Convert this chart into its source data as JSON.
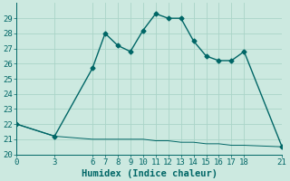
{
  "x_upper": [
    0,
    3,
    6,
    7,
    8,
    9,
    10,
    11,
    12,
    13,
    14,
    15,
    16,
    17,
    18,
    21
  ],
  "y_upper": [
    22,
    21.2,
    25.7,
    28.0,
    27.2,
    26.8,
    28.2,
    29.3,
    29.0,
    29.0,
    27.5,
    26.5,
    26.2,
    26.2,
    26.8,
    20.5
  ],
  "x_lower": [
    0,
    3,
    6,
    7,
    8,
    9,
    10,
    11,
    12,
    13,
    14,
    15,
    16,
    17,
    18,
    21
  ],
  "y_lower": [
    22,
    21.2,
    21.0,
    21.0,
    21.0,
    21.0,
    21.0,
    20.9,
    20.9,
    20.8,
    20.8,
    20.7,
    20.7,
    20.6,
    20.6,
    20.5
  ],
  "line_color": "#006666",
  "bg_color": "#cce9e0",
  "grid_color": "#aad4c8",
  "xlabel": "Humidex (Indice chaleur)",
  "xlim": [
    0,
    21
  ],
  "ylim": [
    20,
    30
  ],
  "xticks": [
    0,
    3,
    6,
    7,
    8,
    9,
    10,
    11,
    12,
    13,
    14,
    15,
    16,
    17,
    18,
    21
  ],
  "yticks": [
    20,
    21,
    22,
    23,
    24,
    25,
    26,
    27,
    28,
    29
  ],
  "marker": "D",
  "markersize": 2.5,
  "linewidth": 1.0,
  "lower_linewidth": 0.7,
  "xlabel_fontsize": 7.5,
  "tick_fontsize": 6.5
}
